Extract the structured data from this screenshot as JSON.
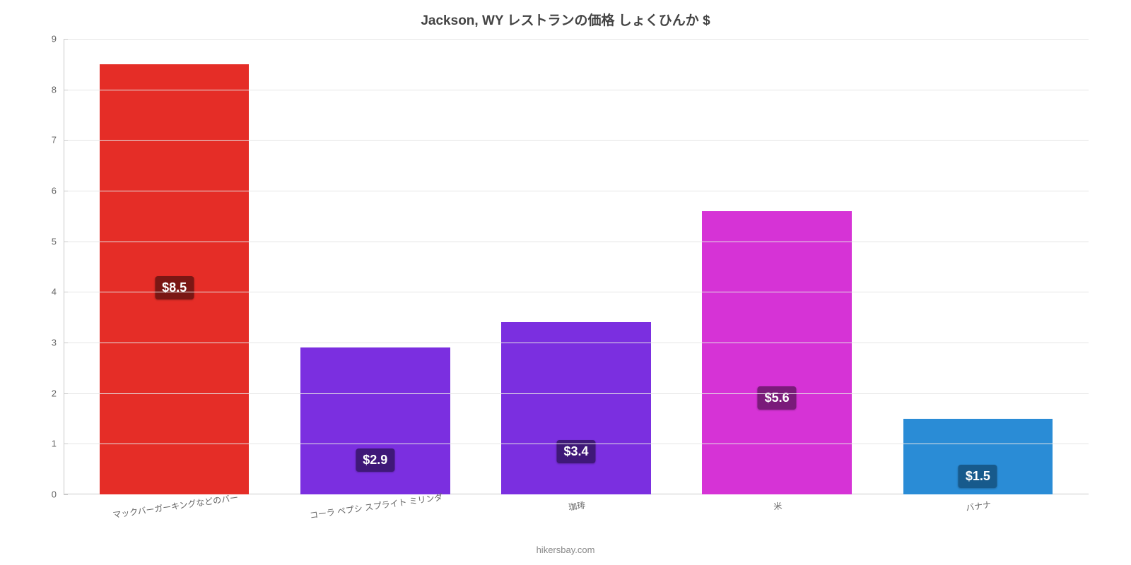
{
  "chart": {
    "type": "bar",
    "title": "Jackson, WY レストランの価格 しょくひんか $",
    "title_fontsize": 19,
    "title_color": "#444444",
    "background_color": "#ffffff",
    "grid_color": "#e5e5e5",
    "axis_color": "#c9c9c9",
    "ylim": [
      0,
      9
    ],
    "yticks": [
      0,
      1,
      2,
      3,
      4,
      5,
      6,
      7,
      8,
      9
    ],
    "ylabel_fontsize": 13,
    "ylabel_color": "#666666",
    "categories": [
      "マックバーガーキングなどのバー",
      "コーラ ペプシ スプライト ミリンダ",
      "珈琲",
      "米",
      "バナナ"
    ],
    "values": [
      8.5,
      2.9,
      3.4,
      5.6,
      1.5
    ],
    "value_labels": [
      "$8.5",
      "$2.9",
      "$3.4",
      "$5.6",
      "$1.5"
    ],
    "bar_colors": [
      "#e52d27",
      "#7b2fe0",
      "#7b2fe0",
      "#d633d6",
      "#2a8cd6"
    ],
    "badge_colors": [
      "#7a1714",
      "#3f1878",
      "#3f1878",
      "#7a1b7a",
      "#175a8c"
    ],
    "bar_width_pct": 14.6,
    "bar_gap_pct": 5.0,
    "xlabel_fontsize": 12,
    "xlabel_color": "#666666",
    "xlabel_rotate_deg": -8,
    "value_badge_fontsize": 18,
    "attribution": "hikersbay.com",
    "attribution_color": "#888888",
    "attribution_fontsize": 13
  }
}
